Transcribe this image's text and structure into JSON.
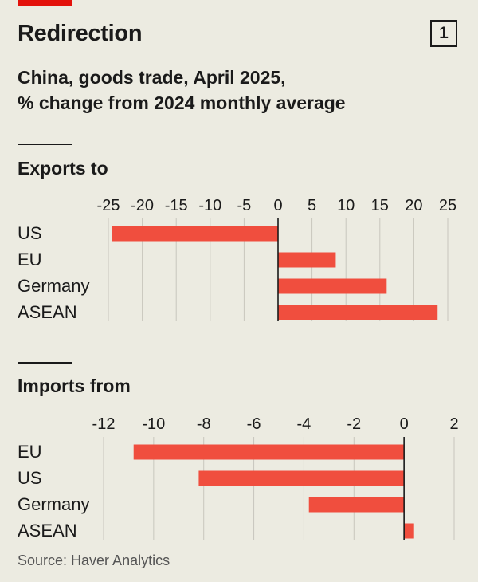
{
  "header": {
    "title": "Redirection",
    "badge": "1",
    "subtitle_line1": "China, goods trade, April 2025,",
    "subtitle_line2": "% change from 2024 monthly average"
  },
  "source": "Source: Haver Analytics",
  "colors": {
    "bar": "#f04e3e",
    "grid": "#c8c6bd",
    "axis": "#1a1a1a",
    "text": "#1a1a1a"
  },
  "chart_data": [
    {
      "type": "bar",
      "orientation": "horizontal",
      "title": "Exports to",
      "categories": [
        "US",
        "EU",
        "Germany",
        "ASEAN"
      ],
      "values": [
        -24.5,
        8.5,
        16.0,
        23.5
      ],
      "xlim": [
        -25,
        25
      ],
      "xticks": [
        -25,
        -20,
        -15,
        -10,
        -5,
        0,
        5,
        10,
        15,
        20,
        25
      ],
      "grid": true
    },
    {
      "type": "bar",
      "orientation": "horizontal",
      "title": "Imports from",
      "categories": [
        "EU",
        "US",
        "Germany",
        "ASEAN"
      ],
      "values": [
        -10.8,
        -8.2,
        -3.8,
        0.4
      ],
      "xlim": [
        -12,
        2
      ],
      "xticks": [
        -12,
        -10,
        -8,
        -6,
        -4,
        -2,
        0,
        2
      ],
      "grid": true
    }
  ]
}
